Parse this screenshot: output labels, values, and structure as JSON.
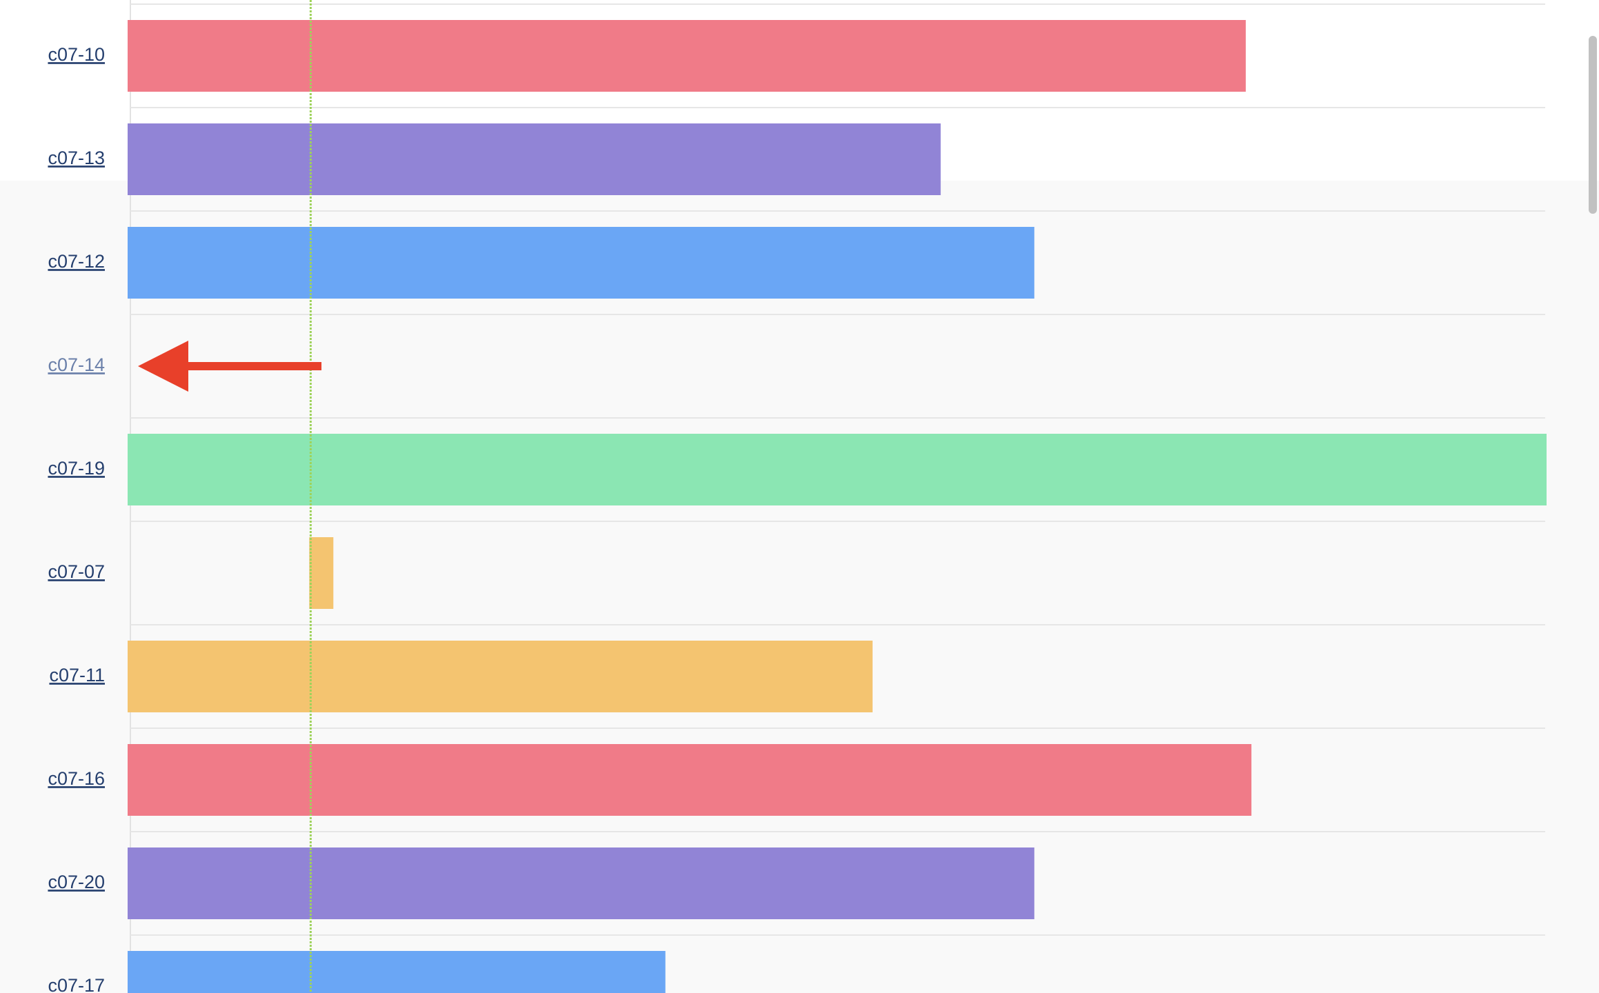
{
  "chart_data": {
    "type": "bar",
    "categories": [
      "c07-10",
      "c07-13",
      "c07-12",
      "c07-14",
      "c07-19",
      "c07-07",
      "c07-11",
      "c07-16",
      "c07-20",
      "c07-17"
    ],
    "values": [
      78.8,
      57.3,
      63.9,
      null,
      100,
      [
        12.8,
        14.5
      ],
      52.5,
      79.2,
      63.9,
      37.9
    ],
    "colors": [
      "#f07b88",
      "#9184d6",
      "#6aa6f5",
      "#f07b88",
      "#8be6b3",
      "#f4c470",
      "#f4c470",
      "#f07b88",
      "#9184d6",
      "#6aa6f5"
    ],
    "xlim": [
      0,
      100
    ],
    "reference_line": 12.9
  }
}
